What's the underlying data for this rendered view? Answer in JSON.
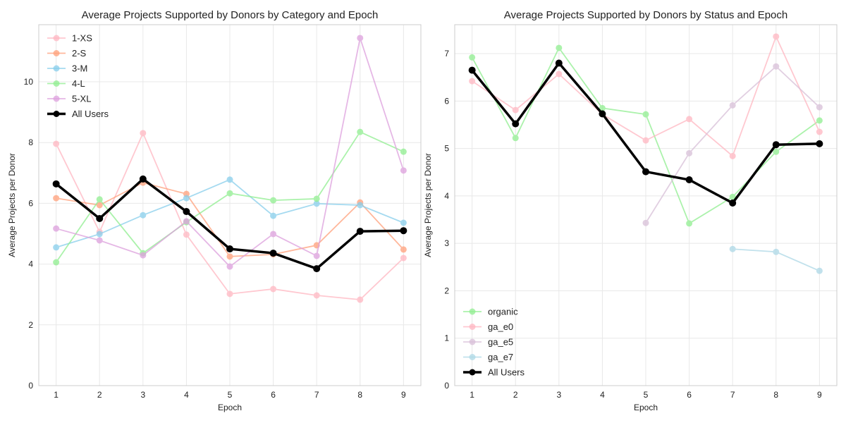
{
  "chart_data": [
    {
      "type": "line",
      "title": "Average Projects Supported by Donors by Category and Epoch",
      "xlabel": "Epoch",
      "ylabel": "Average Projects per Donor",
      "x": [
        1,
        2,
        3,
        4,
        5,
        6,
        7,
        8,
        9
      ],
      "xlim": [
        0.6,
        9.4
      ],
      "ylim": [
        0,
        11.88
      ],
      "yticks": [
        0,
        2,
        4,
        6,
        8,
        10
      ],
      "grid": true,
      "legend": "top-left",
      "series": [
        {
          "name": "1-XS",
          "color": "#ffb6c1",
          "values": [
            7.96,
            5.06,
            8.31,
            4.97,
            3.02,
            3.18,
            2.97,
            2.83,
            4.2
          ]
        },
        {
          "name": "2-S",
          "color": "#ffa07a",
          "values": [
            6.17,
            5.94,
            6.68,
            6.31,
            4.25,
            4.32,
            4.62,
            6.03,
            4.48
          ]
        },
        {
          "name": "3-M",
          "color": "#87ceeb",
          "values": [
            4.55,
            4.99,
            5.61,
            6.17,
            6.78,
            5.59,
            5.99,
            5.94,
            5.36
          ]
        },
        {
          "name": "4-L",
          "color": "#90ee90",
          "values": [
            4.06,
            6.13,
            4.36,
            5.38,
            6.33,
            6.1,
            6.15,
            8.35,
            7.7
          ]
        },
        {
          "name": "5-XL",
          "color": "#dda0dd",
          "values": [
            5.17,
            4.78,
            4.29,
            5.41,
            3.92,
            4.99,
            4.27,
            11.44,
            7.08
          ]
        },
        {
          "name": "All Users",
          "color": "#000000",
          "bold": true,
          "values": [
            6.64,
            5.5,
            6.8,
            5.73,
            4.5,
            4.36,
            3.85,
            5.08,
            5.1
          ]
        }
      ]
    },
    {
      "type": "line",
      "title": "Average Projects Supported by Donors by Status and Epoch",
      "xlabel": "Epoch",
      "ylabel": "Average Projects per Donor",
      "x": [
        1,
        2,
        3,
        4,
        5,
        6,
        7,
        8,
        9
      ],
      "xlim": [
        0.6,
        9.4
      ],
      "ylim": [
        0,
        7.61
      ],
      "yticks": [
        0,
        1,
        2,
        3,
        4,
        5,
        6,
        7
      ],
      "grid": true,
      "legend": "bottom-left",
      "series": [
        {
          "name": "organic",
          "color": "#90ee90",
          "values": [
            6.92,
            5.22,
            7.12,
            5.85,
            5.72,
            3.42,
            3.98,
            4.93,
            5.59
          ]
        },
        {
          "name": "ga_e0",
          "color": "#ffb6c1",
          "values": [
            6.42,
            5.81,
            6.57,
            5.72,
            5.17,
            5.62,
            4.84,
            7.36,
            5.35
          ]
        },
        {
          "name": "ga_e5",
          "color": "#d8bfd8",
          "values": [
            null,
            null,
            null,
            null,
            3.43,
            4.9,
            5.91,
            6.73,
            5.87
          ]
        },
        {
          "name": "ga_e7",
          "color": "#add8e6",
          "values": [
            null,
            null,
            null,
            null,
            null,
            null,
            2.88,
            2.82,
            2.42
          ]
        },
        {
          "name": "All Users",
          "color": "#000000",
          "bold": true,
          "values": [
            6.65,
            5.52,
            6.8,
            5.73,
            4.51,
            4.34,
            3.85,
            5.08,
            5.1
          ]
        }
      ]
    }
  ]
}
